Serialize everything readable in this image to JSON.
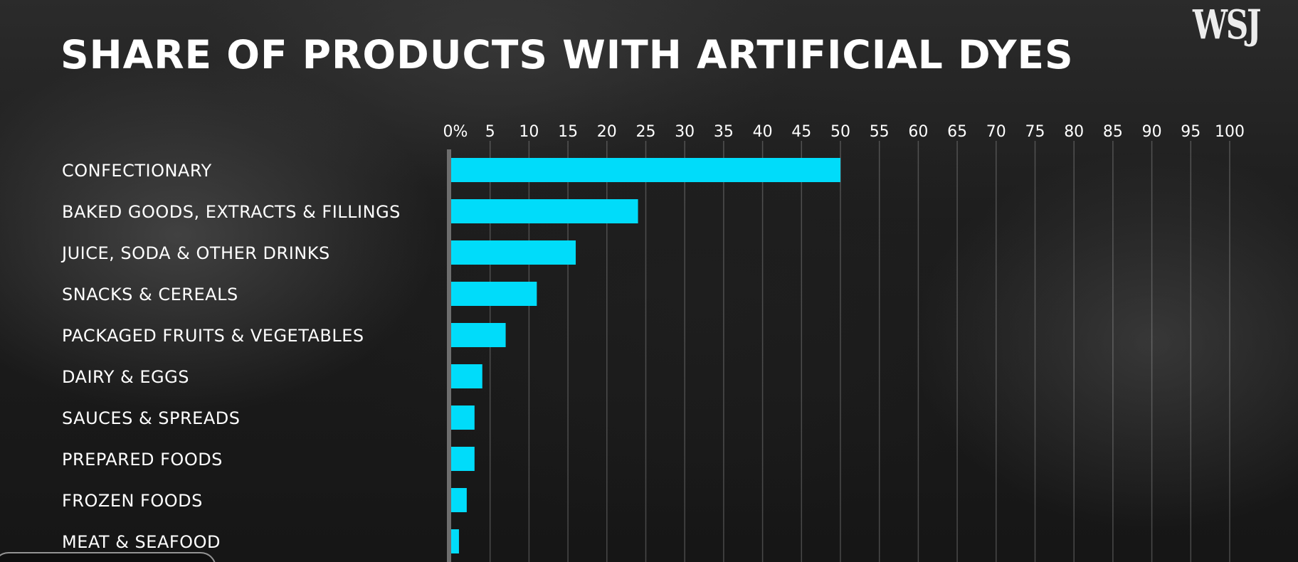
{
  "logo": "WSJ",
  "chart_data": {
    "type": "bar",
    "orientation": "horizontal",
    "title": "SHARE OF PRODUCTS WITH ARTIFICIAL DYES",
    "categories": [
      "CONFECTIONARY",
      "BAKED GOODS, EXTRACTS & FILLINGS",
      "JUICE, SODA & OTHER DRINKS",
      "SNACKS & CEREALS",
      "PACKAGED FRUITS & VEGETABLES",
      "DAIRY & EGGS",
      "SAUCES & SPREADS",
      "PREPARED FOODS",
      "FROZEN FOODS",
      "MEAT & SEAFOOD"
    ],
    "values": [
      50,
      24,
      16,
      11,
      7,
      4,
      3,
      3,
      2,
      1
    ],
    "xlim": [
      0,
      100
    ],
    "x_ticks": [
      0,
      5,
      10,
      15,
      20,
      25,
      30,
      35,
      40,
      45,
      50,
      55,
      60,
      65,
      70,
      75,
      80,
      85,
      90,
      95,
      100
    ],
    "x_tick_labels": [
      "0%",
      "5",
      "10",
      "15",
      "20",
      "25",
      "30",
      "35",
      "40",
      "45",
      "50",
      "55",
      "60",
      "65",
      "70",
      "75",
      "80",
      "85",
      "90",
      "95",
      "100"
    ],
    "x_axis_position": "top",
    "grid": true,
    "bar_color": "#00dcfa"
  }
}
